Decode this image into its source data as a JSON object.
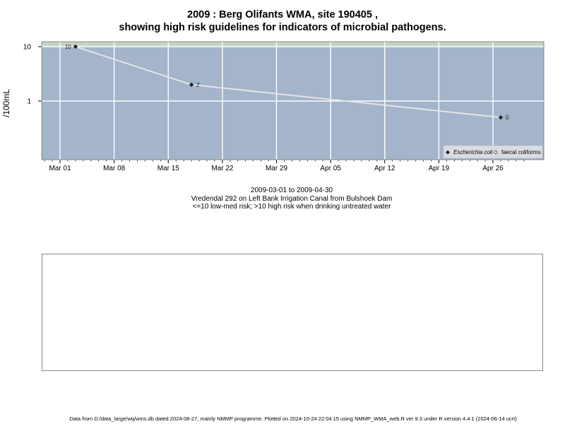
{
  "chart_data": {
    "type": "line",
    "title_line1": "2009 : Berg Olifants WMA, site 190405 ,",
    "title_line2": "showing high risk guidelines for indicators of microbial pathogens.",
    "ylabel": "/100mL",
    "yscale": "log",
    "yticks": [
      {
        "value": 10,
        "label": "10"
      },
      {
        "value": 1,
        "label": "1"
      }
    ],
    "xticks": [
      {
        "date": "2009-03-01",
        "label": "Mar 01"
      },
      {
        "date": "2009-03-08",
        "label": "Mar 08"
      },
      {
        "date": "2009-03-15",
        "label": "Mar 15"
      },
      {
        "date": "2009-03-22",
        "label": "Mar 22"
      },
      {
        "date": "2009-03-29",
        "label": "Mar 29"
      },
      {
        "date": "2009-04-05",
        "label": "Apr 05"
      },
      {
        "date": "2009-04-12",
        "label": "Apr 12"
      },
      {
        "date": "2009-04-19",
        "label": "Apr 19"
      },
      {
        "date": "2009-04-26",
        "label": "Apr 26"
      }
    ],
    "series": [
      {
        "name": "Escherichia coli",
        "points": [
          {
            "x": "2009-03-03",
            "y": 10,
            "label": "10"
          },
          {
            "x": "2009-03-18",
            "y": 2,
            "label": "2"
          },
          {
            "x": "2009-04-27",
            "y": 0.5,
            "label": "0"
          }
        ]
      },
      {
        "name": "faecal coliforms",
        "points": []
      }
    ],
    "threshold": 10,
    "grid": true,
    "legend_position": "bottom-right",
    "colors": {
      "panel": "#a3b4cb",
      "high_risk_band": "#c6d3c3",
      "grid": "#ffffff",
      "line": "#e4e4e8",
      "marker": "#222222"
    }
  },
  "subtitle": {
    "date_range": "2009-03-01 to 2009-04-30",
    "site": "Vredendal 292 on Left Bank Irrigation Canal from Bulshoek Dam",
    "risk_note": "<=10 low-med risk; >10 high risk when drinking untreated water"
  },
  "footer": "Data from D:/data_large/wq/wms.db dated 2024-08-27, mainly NMMP programme. Plotted on 2024-10-24 22:04:15 using NMMP_WMA_web.R ver 9.3 under R version 4.4.1 (2024-06-14 ucrt)"
}
